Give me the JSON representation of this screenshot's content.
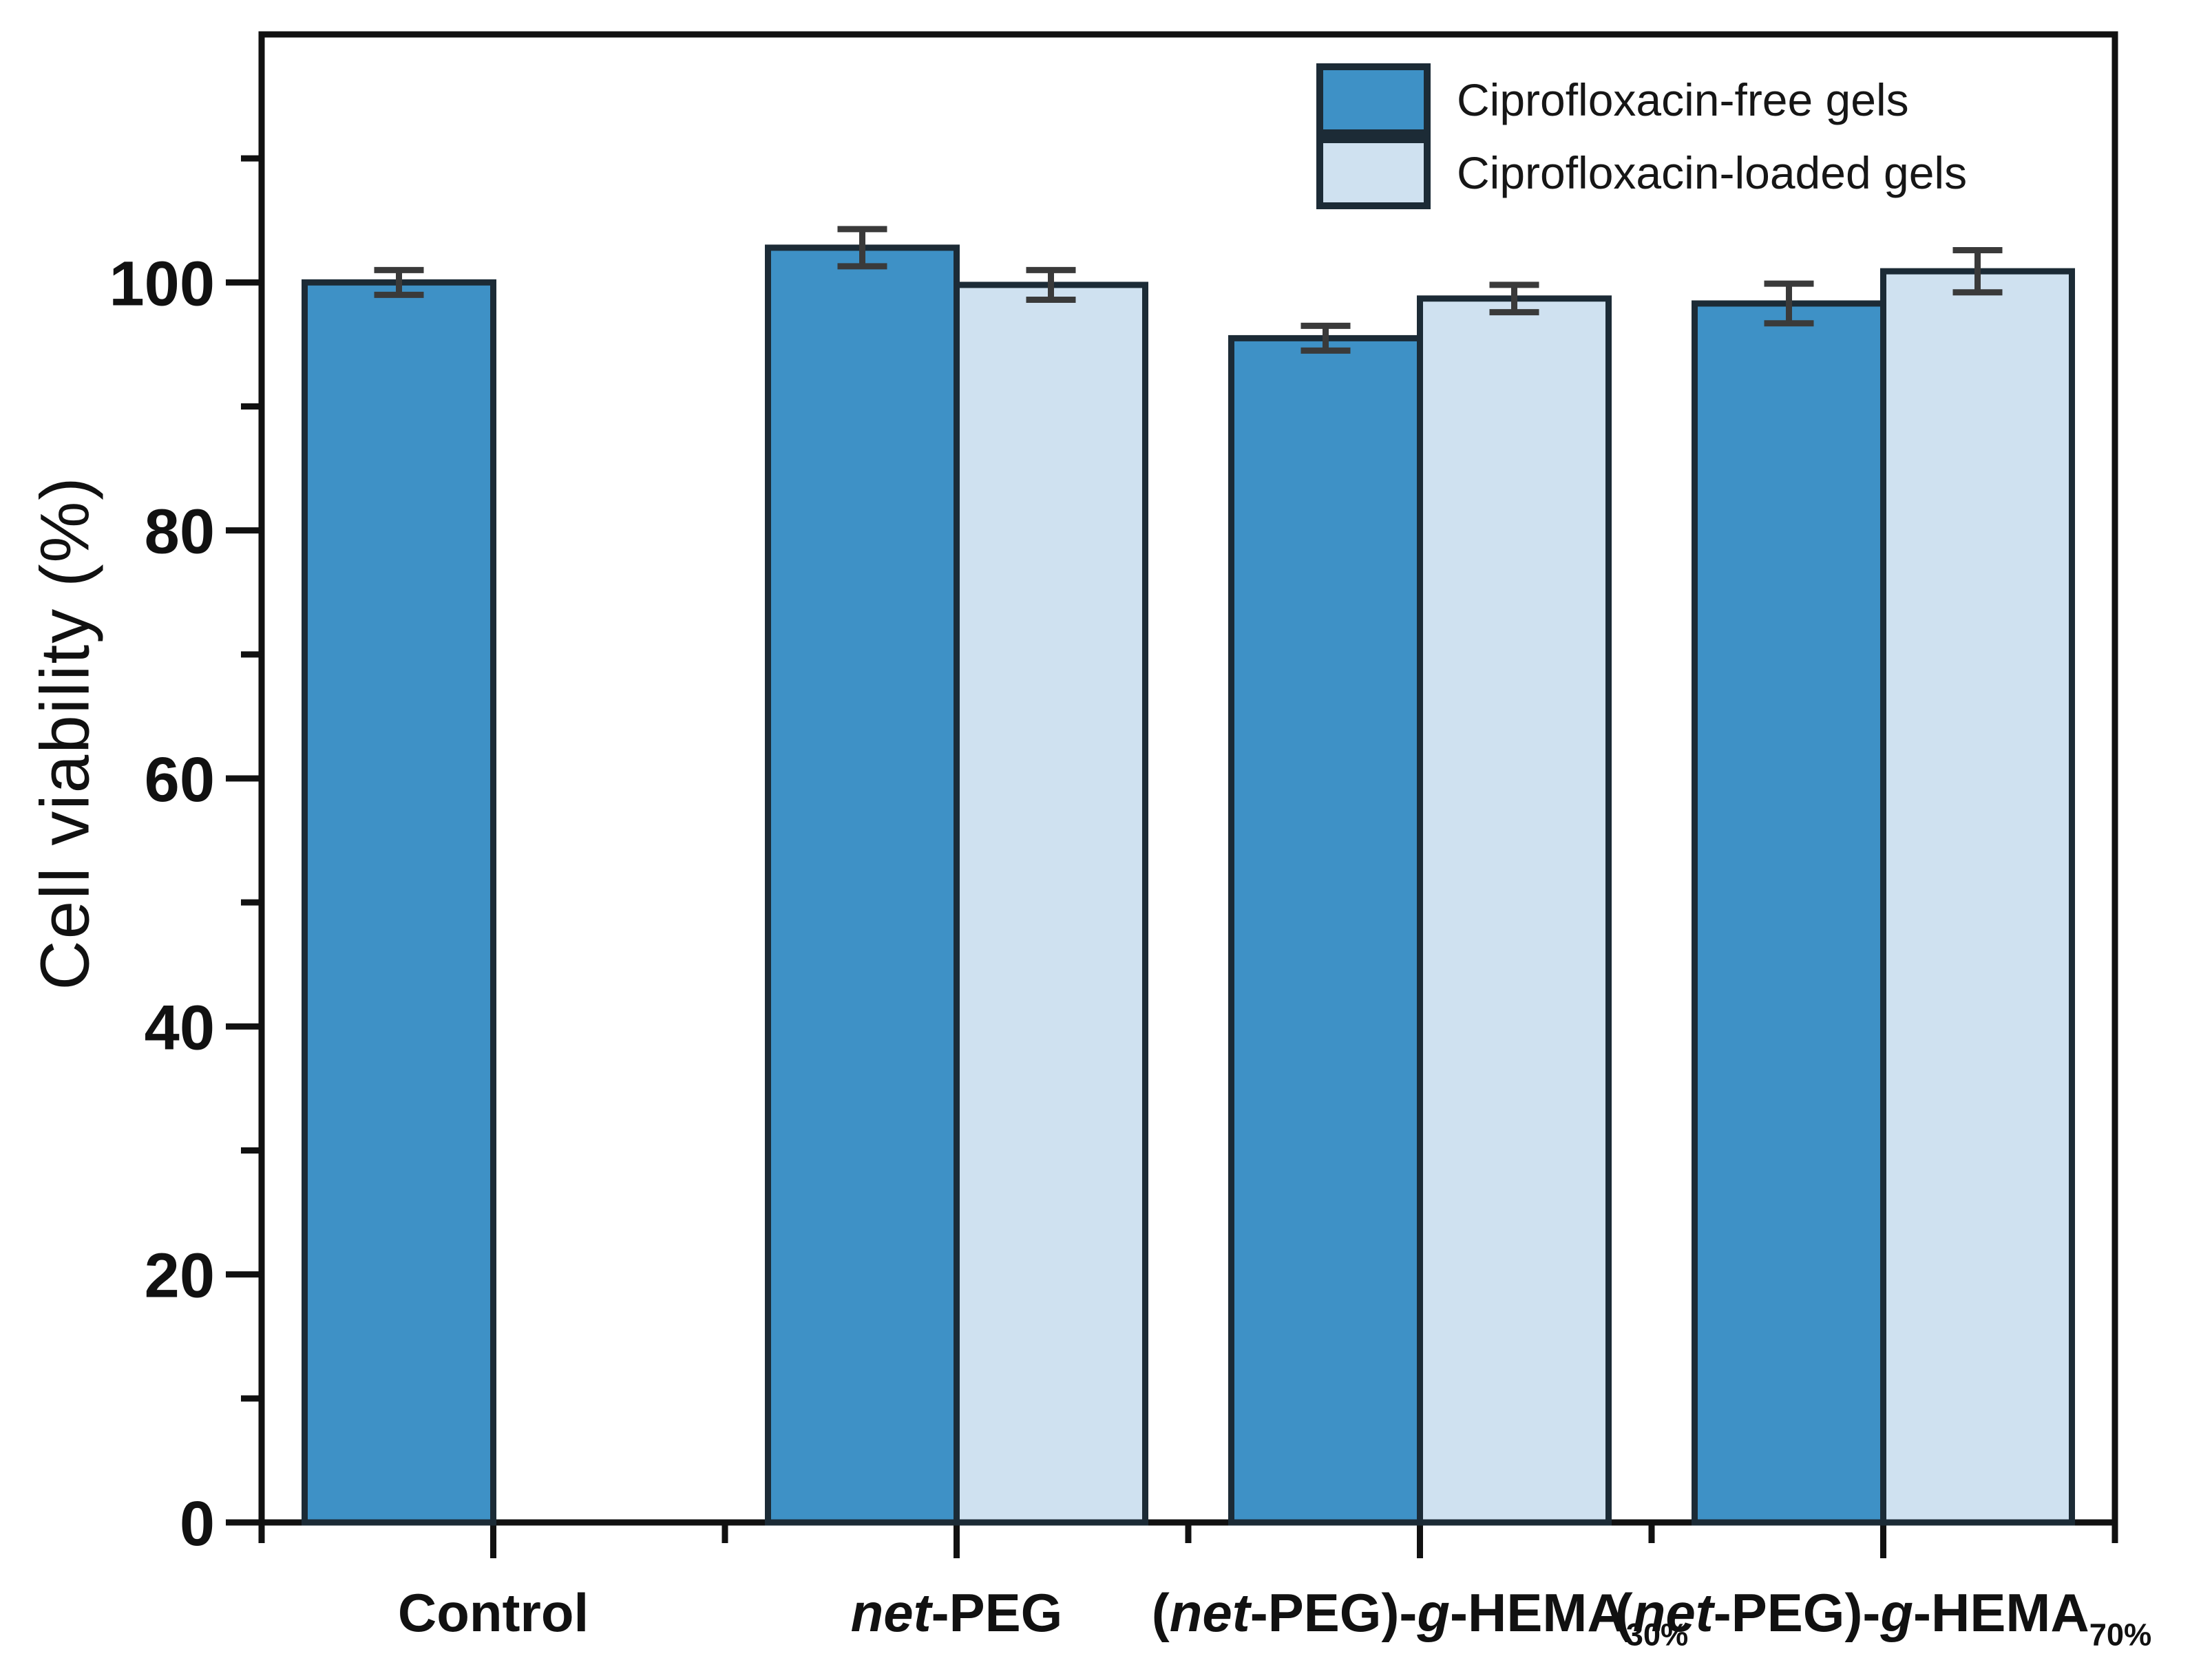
{
  "chart_data": {
    "type": "bar",
    "title": "",
    "ylabel": "Cell viability (%)",
    "xlabel": "",
    "ylim": [
      0,
      120
    ],
    "yticks_labeled": [
      0,
      20,
      40,
      60,
      80,
      100
    ],
    "yticks_minor": [
      10,
      30,
      50,
      70,
      90,
      110
    ],
    "grid": false,
    "legend_position": "top-right",
    "categories_plain": [
      "Control",
      "net-PEG",
      "(net-PEG)-g-HEMA30%",
      "(net-PEG)-g-HEMA70%"
    ],
    "categories_rich": [
      [
        {
          "t": "Control"
        }
      ],
      [
        {
          "t": "net",
          "i": true
        },
        {
          "t": "-PEG"
        }
      ],
      [
        {
          "t": "("
        },
        {
          "t": "net",
          "i": true
        },
        {
          "t": "-PEG)-"
        },
        {
          "t": "g",
          "i": true
        },
        {
          "t": "-HEMA"
        },
        {
          "t": "30%",
          "sub": true
        }
      ],
      [
        {
          "t": "("
        },
        {
          "t": "net",
          "i": true
        },
        {
          "t": "-PEG)-"
        },
        {
          "t": "g",
          "i": true
        },
        {
          "t": "-HEMA"
        },
        {
          "t": "70%",
          "sub": true
        }
      ]
    ],
    "series": [
      {
        "name": "Ciprofloxacin-free gels",
        "color": "#3E91C6",
        "border_color": "#1C2B36",
        "values": [
          100.0,
          102.8,
          95.5,
          98.3
        ],
        "errors": [
          1.0,
          1.5,
          1.0,
          1.6
        ]
      },
      {
        "name": "Ciprofloxacin-loaded gels",
        "color": "#CFE1F0",
        "border_color": "#1C2B36",
        "values": [
          null,
          99.8,
          98.7,
          100.9
        ],
        "errors": [
          null,
          1.2,
          1.1,
          1.7
        ]
      }
    ],
    "error_bar_color": "#3A3A3A",
    "axis_color": "#111111"
  }
}
